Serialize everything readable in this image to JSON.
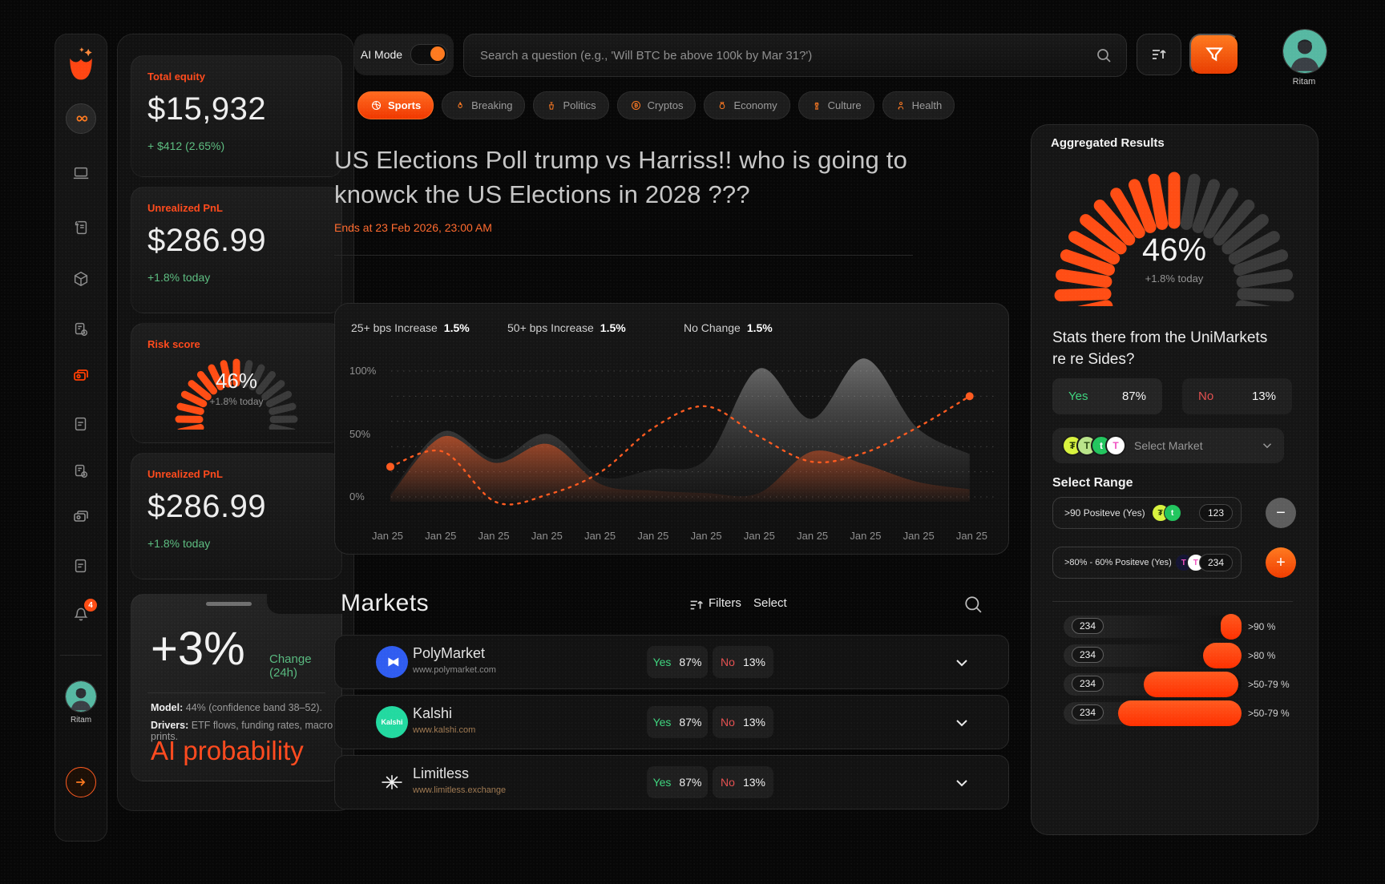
{
  "brand": {
    "accent": "#ff4d14",
    "logo": "tulip-logo"
  },
  "topbar": {
    "ai_mode_label": "AI Mode",
    "search_placeholder": "Search a question (e.g., 'Will BTC be above 100k by Mar 31?')",
    "user_name": "Ritam"
  },
  "sidebar": {
    "notification_count": "4",
    "user_name": "Ritam"
  },
  "categories": [
    {
      "label": "Sports",
      "icon": "volleyball-icon",
      "active": true
    },
    {
      "label": "Breaking",
      "icon": "flame-icon",
      "active": false
    },
    {
      "label": "Politics",
      "icon": "podium-icon",
      "active": false
    },
    {
      "label": "Cryptos",
      "icon": "bitcoin-icon",
      "active": false
    },
    {
      "label": "Economy",
      "icon": "money-icon",
      "active": false
    },
    {
      "label": "Culture",
      "icon": "tower-icon",
      "active": false
    },
    {
      "label": "Health",
      "icon": "health-icon",
      "active": false
    }
  ],
  "stats": {
    "cards": [
      {
        "label": "Total equity",
        "value": "$15,932",
        "delta": "+ $412 (2.65%)"
      },
      {
        "label": "Unrealized PnL",
        "value": "$286.99",
        "delta": "+1.8% today"
      },
      {
        "label": "Risk score",
        "gauge_percent": 46,
        "gauge_value": "46%",
        "gauge_delta": "+1.8% today"
      },
      {
        "label": "Unrealized PnL",
        "value": "$286.99",
        "delta": "+1.8% today"
      }
    ],
    "ai_card": {
      "change_value": "+3%",
      "change_label": "Change (24h)",
      "model_label": "Model:",
      "model_text": "44% (confidence band 38–52).",
      "drivers_label": "Drivers:",
      "drivers_text": "ETF flows, funding rates, macro prints.",
      "footer": "AI probability"
    }
  },
  "question": {
    "title": "US Elections Poll trump vs Harriss!! who is going to knowck the US Elections in 2028 ???",
    "ends": "Ends at 23 Feb 2026, 23:00 AM"
  },
  "chart_data": {
    "type": "area",
    "title": "",
    "x_labels": [
      "Jan 25",
      "Jan 25",
      "Jan 25",
      "Jan 25",
      "Jan 25",
      "Jan 25",
      "Jan 25",
      "Jan 25",
      "Jan 25",
      "Jan 25",
      "Jan 25",
      "Jan 25"
    ],
    "y_ticks": [
      "100%",
      "50%",
      "0%"
    ],
    "ylim": [
      0,
      100
    ],
    "grid": true,
    "legend": [
      {
        "label": "25+ bps Increase",
        "value": "1.5%"
      },
      {
        "label": "50+ bps Increase",
        "value": "1.5%"
      },
      {
        "label": "No Change",
        "value": "1.5%"
      }
    ],
    "series": [
      {
        "name": "25+ bps Increase",
        "kind": "gray-area",
        "color": "#9a9a9a",
        "values": [
          3,
          52,
          30,
          50,
          16,
          22,
          30,
          102,
          62,
          110,
          55,
          34
        ]
      },
      {
        "name": "50+ bps Increase",
        "kind": "accent-area",
        "color": "#ff5a1f",
        "values": [
          1,
          48,
          27,
          42,
          10,
          5,
          3,
          3,
          36,
          26,
          12,
          6
        ]
      },
      {
        "name": "No Change",
        "kind": "accent-dashed",
        "color": "#ff5a1f",
        "endpoint_dots": true,
        "values": [
          24,
          36,
          -4,
          2,
          20,
          55,
          72,
          48,
          28,
          35,
          55,
          80
        ]
      }
    ]
  },
  "markets": {
    "heading": "Markets",
    "filters_label": "Filters",
    "select_label": "Select",
    "rows": [
      {
        "name": "PolyMarket",
        "url": "www.polymarket.com",
        "yes_label": "Yes",
        "yes_value": "87%",
        "no_label": "No",
        "no_value": "13%"
      },
      {
        "name": "Kalshi",
        "logo_text": "Kalshi",
        "url": "www.kalshi.com",
        "yes_label": "Yes",
        "yes_value": "87%",
        "no_label": "No",
        "no_value": "13%"
      },
      {
        "name": "Limitless",
        "url": "www.limitless.exchange",
        "yes_label": "Yes",
        "yes_value": "87%",
        "no_label": "No",
        "no_value": "13%"
      }
    ]
  },
  "aggregated": {
    "heading": "Aggregated Results",
    "gauge_percent": 46,
    "gauge_value": "46%",
    "gauge_delta": "+1.8% today",
    "question": "Stats there from the UniMarkets re re  Sides?",
    "yes_label": "Yes",
    "yes_value": "87%",
    "no_label": "No",
    "no_value": "13%",
    "select_market_label": "Select Market",
    "select_range_label": "Select Range",
    "ranges": [
      {
        "label": ">90 Positeve (Yes)",
        "count": "123",
        "action": "remove"
      },
      {
        "label": ">80% - 60% Positeve (Yes)",
        "count": "234",
        "action": "add"
      }
    ],
    "bars": [
      {
        "count": "234",
        "label": ">90 %",
        "left_pct": 88.5,
        "width_pct": 11.5
      },
      {
        "count": "234",
        "label": ">80 %",
        "left_pct": 78.4,
        "width_pct": 21.6
      },
      {
        "count": "234",
        "label": ">50-79 %",
        "left_pct": 45.0,
        "width_pct": 53.0
      },
      {
        "count": "234",
        "label": ">50-79 %",
        "left_pct": 30.6,
        "width_pct": 69.4
      }
    ]
  },
  "icons": {
    "minus": "−",
    "plus": "+"
  }
}
